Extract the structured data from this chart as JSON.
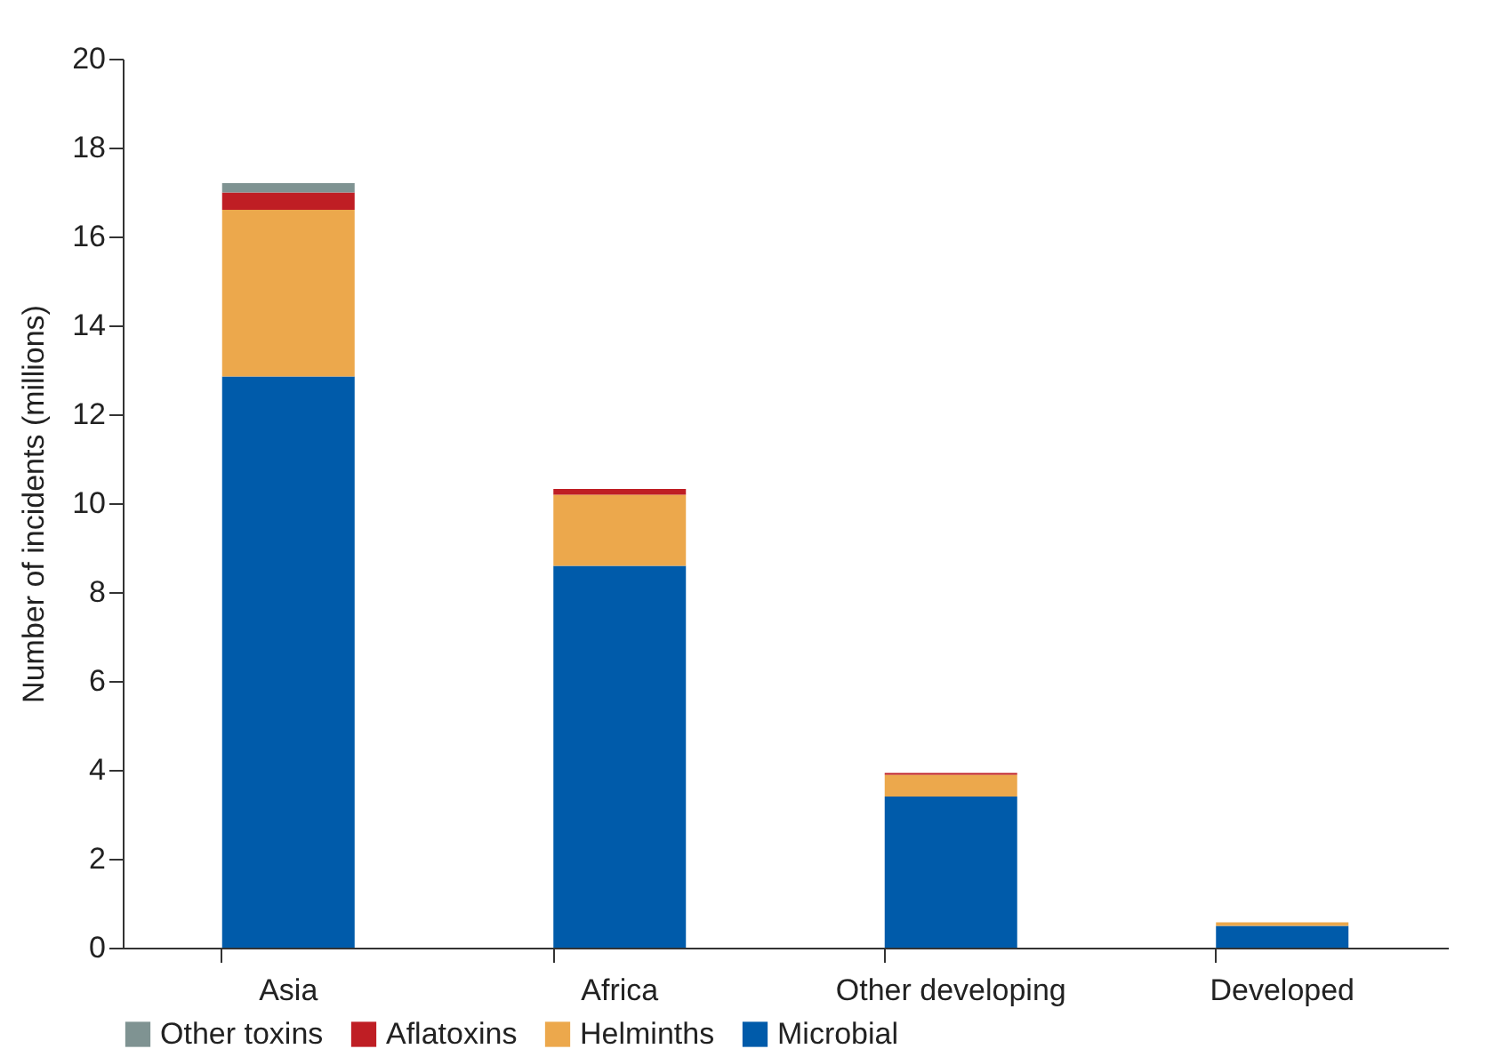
{
  "chart_data": {
    "type": "bar",
    "stacked": true,
    "ylabel": "Number of incidents (millions)",
    "categories": [
      "Asia",
      "Africa",
      "Other developing",
      "Developed"
    ],
    "series": [
      {
        "name": "Microbial",
        "color": "#005baa",
        "values": [
          12.85,
          8.59,
          3.4,
          0.49
        ]
      },
      {
        "name": "Helminths",
        "color": "#eca84c",
        "values": [
          3.75,
          1.6,
          0.49,
          0.08
        ]
      },
      {
        "name": "Aflatoxins",
        "color": "#bf1e24",
        "values": [
          0.39,
          0.13,
          0.04,
          null
        ]
      },
      {
        "name": "Other toxins",
        "color": "#7f9392",
        "values": [
          0.21,
          null,
          null,
          null
        ]
      }
    ],
    "ylim": [
      0,
      20
    ],
    "yticks": [
      0,
      2,
      4,
      6,
      8,
      10,
      12,
      14,
      16,
      18,
      20
    ],
    "grid": false,
    "legend": "bottom"
  }
}
